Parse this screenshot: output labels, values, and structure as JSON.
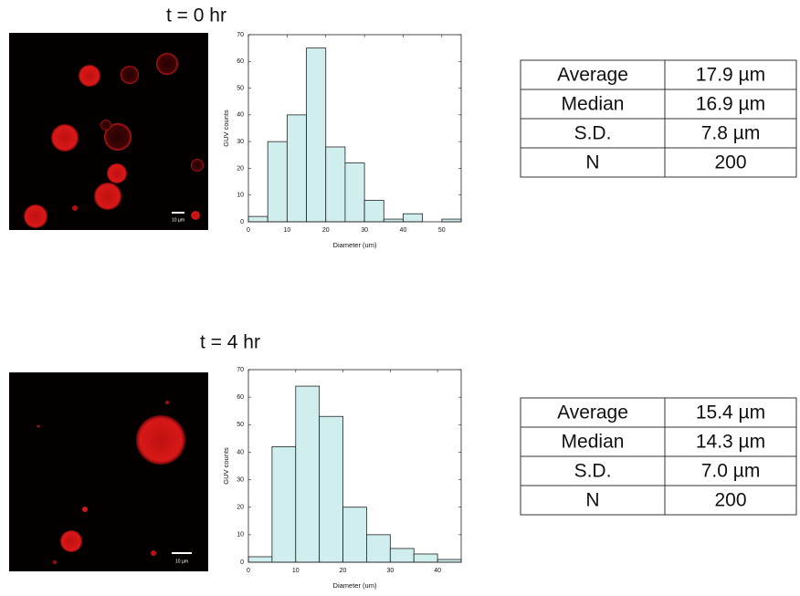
{
  "chart_data": [
    {
      "type": "histogram",
      "title": "t = 0 hr",
      "xlabel": "Diameter (um)",
      "ylabel": "GUV counts",
      "bins": [
        0,
        5,
        10,
        15,
        20,
        25,
        30,
        35,
        40,
        45,
        50,
        55
      ],
      "values": [
        2,
        30,
        40,
        65,
        28,
        22,
        8,
        1,
        3,
        0,
        1
      ],
      "color": "#d0eeee",
      "xlim": [
        0,
        55
      ],
      "xticks": [
        0,
        10,
        20,
        30,
        40,
        50
      ],
      "ylim": [
        0,
        70
      ],
      "yticks": [
        0,
        10,
        20,
        30,
        40,
        50,
        60,
        70
      ]
    },
    {
      "type": "histogram",
      "title": "t = 4 hr",
      "xlabel": "Diameter (um)",
      "ylabel": "GUV counts",
      "bins": [
        0,
        5,
        10,
        15,
        20,
        25,
        30,
        35,
        40,
        45
      ],
      "values": [
        2,
        42,
        64,
        53,
        20,
        10,
        5,
        3,
        1
      ],
      "color": "#d0eeee",
      "xlim": [
        0,
        45
      ],
      "xticks": [
        0,
        10,
        20,
        30,
        40
      ],
      "ylim": [
        0,
        70
      ],
      "yticks": [
        0,
        10,
        20,
        30,
        40,
        50,
        60,
        70
      ]
    }
  ],
  "images": [
    {
      "scale_bar": "10 µm"
    },
    {
      "scale_bar": "10 µm"
    }
  ],
  "tables": [
    {
      "rows": [
        [
          "Average",
          "17.9 µm"
        ],
        [
          "Median",
          "16.9 µm"
        ],
        [
          "S.D.",
          "7.8 µm"
        ],
        [
          "N",
          "200"
        ]
      ]
    },
    {
      "rows": [
        [
          "Average",
          "15.4 µm"
        ],
        [
          "Median",
          "14.3 µm"
        ],
        [
          "S.D.",
          "7.0 µm"
        ],
        [
          "N",
          "200"
        ]
      ]
    }
  ]
}
